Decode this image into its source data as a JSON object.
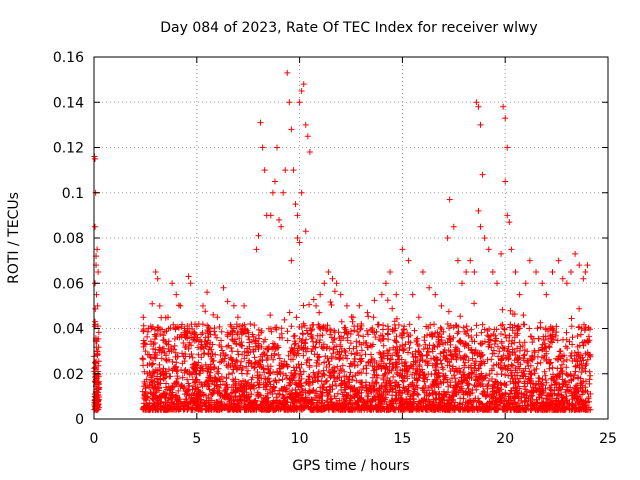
{
  "chart_data": {
    "type": "scatter",
    "title": "Day 084 of 2023, Rate Of TEC Index for receiver wlwy",
    "xlabel": "GPS time / hours",
    "ylabel": "ROTI / TECUs",
    "xlim": [
      0,
      25
    ],
    "ylim": [
      0,
      0.16
    ],
    "grid": true,
    "marker": "+",
    "series_color": "#ff0000",
    "x_ticks": [
      {
        "value": 0,
        "label": "0"
      },
      {
        "value": 5,
        "label": "5"
      },
      {
        "value": 10,
        "label": "10"
      },
      {
        "value": 15,
        "label": "15"
      },
      {
        "value": 20,
        "label": "20"
      },
      {
        "value": 25,
        "label": "25"
      }
    ],
    "y_ticks": [
      {
        "value": 0,
        "label": "0"
      },
      {
        "value": 0.02,
        "label": "0.02"
      },
      {
        "value": 0.04,
        "label": "0.04"
      },
      {
        "value": 0.06,
        "label": "0.06"
      },
      {
        "value": 0.08,
        "label": "0.08"
      },
      {
        "value": 0.1,
        "label": "0.1"
      },
      {
        "value": 0.12,
        "label": "0.12"
      },
      {
        "value": 0.14,
        "label": "0.14"
      },
      {
        "value": 0.16,
        "label": "0.16"
      }
    ],
    "series": [
      {
        "name": "ROTI",
        "points": [
          [
            0.02,
            0.116
          ],
          [
            0.05,
            0.115
          ],
          [
            0.08,
            0.1
          ],
          [
            0.05,
            0.085
          ],
          [
            0.1,
            0.072
          ],
          [
            0.15,
            0.075
          ],
          [
            0.1,
            0.068
          ],
          [
            0.2,
            0.065
          ],
          [
            0.05,
            0.06
          ],
          [
            0.12,
            0.055
          ],
          [
            0.18,
            0.05
          ],
          [
            0.05,
            0.043
          ],
          [
            0.1,
            0.035
          ],
          [
            0.15,
            0.03
          ],
          [
            0.05,
            0.025
          ],
          [
            0.2,
            0.02
          ],
          [
            0.1,
            0.015
          ],
          [
            0.15,
            0.012
          ],
          [
            0.05,
            0.01
          ],
          [
            0.2,
            0.008
          ],
          [
            0.1,
            0.007
          ],
          [
            0.15,
            0.018
          ],
          [
            0.22,
            0.013
          ],
          [
            0.03,
            0.011
          ],
          [
            2.4,
            0.045
          ],
          [
            2.5,
            0.03
          ],
          [
            2.6,
            0.02
          ],
          [
            2.7,
            0.015
          ],
          [
            2.8,
            0.04
          ],
          [
            3.0,
            0.065
          ],
          [
            3.1,
            0.062
          ],
          [
            3.2,
            0.05
          ],
          [
            3.4,
            0.035
          ],
          [
            3.6,
            0.045
          ],
          [
            3.8,
            0.06
          ],
          [
            4.0,
            0.055
          ],
          [
            4.2,
            0.05
          ],
          [
            4.4,
            0.04
          ],
          [
            4.6,
            0.063
          ],
          [
            4.7,
            0.06
          ],
          [
            4.9,
            0.038
          ],
          [
            5.1,
            0.042
          ],
          [
            5.3,
            0.05
          ],
          [
            5.5,
            0.056
          ],
          [
            5.8,
            0.046
          ],
          [
            6.0,
            0.045
          ],
          [
            6.3,
            0.058
          ],
          [
            6.5,
            0.052
          ],
          [
            6.8,
            0.04
          ],
          [
            7.0,
            0.045
          ],
          [
            7.3,
            0.05
          ],
          [
            7.6,
            0.042
          ],
          [
            7.9,
            0.075
          ],
          [
            8.0,
            0.081
          ],
          [
            8.1,
            0.131
          ],
          [
            8.2,
            0.12
          ],
          [
            8.3,
            0.11
          ],
          [
            8.4,
            0.09
          ],
          [
            8.6,
            0.09
          ],
          [
            8.7,
            0.1
          ],
          [
            8.8,
            0.105
          ],
          [
            8.9,
            0.12
          ],
          [
            9.0,
            0.088
          ],
          [
            9.1,
            0.085
          ],
          [
            9.2,
            0.1
          ],
          [
            9.3,
            0.11
          ],
          [
            9.4,
            0.153
          ],
          [
            9.5,
            0.14
          ],
          [
            9.6,
            0.128
          ],
          [
            9.7,
            0.11
          ],
          [
            9.8,
            0.095
          ],
          [
            9.9,
            0.09
          ],
          [
            10.0,
            0.14
          ],
          [
            10.1,
            0.145
          ],
          [
            10.2,
            0.148
          ],
          [
            10.3,
            0.13
          ],
          [
            10.4,
            0.125
          ],
          [
            10.5,
            0.118
          ],
          [
            10.1,
            0.1
          ],
          [
            9.9,
            0.08
          ],
          [
            10.3,
            0.083
          ],
          [
            9.6,
            0.07
          ],
          [
            10.0,
            0.078
          ],
          [
            10.8,
            0.05
          ],
          [
            11.0,
            0.055
          ],
          [
            11.2,
            0.06
          ],
          [
            11.4,
            0.065
          ],
          [
            11.6,
            0.062
          ],
          [
            11.8,
            0.06
          ],
          [
            12.0,
            0.055
          ],
          [
            12.3,
            0.05
          ],
          [
            12.6,
            0.045
          ],
          [
            13.0,
            0.042
          ],
          [
            13.3,
            0.047
          ],
          [
            13.6,
            0.045
          ],
          [
            14.0,
            0.055
          ],
          [
            14.2,
            0.06
          ],
          [
            14.4,
            0.065
          ],
          [
            14.7,
            0.055
          ],
          [
            15.0,
            0.075
          ],
          [
            15.3,
            0.07
          ],
          [
            15.5,
            0.055
          ],
          [
            15.8,
            0.045
          ],
          [
            16.0,
            0.065
          ],
          [
            16.3,
            0.058
          ],
          [
            16.6,
            0.055
          ],
          [
            16.9,
            0.05
          ],
          [
            17.2,
            0.08
          ],
          [
            17.3,
            0.097
          ],
          [
            17.5,
            0.085
          ],
          [
            17.7,
            0.07
          ],
          [
            17.9,
            0.06
          ],
          [
            18.1,
            0.065
          ],
          [
            18.3,
            0.07
          ],
          [
            18.5,
            0.065
          ],
          [
            18.6,
            0.14
          ],
          [
            18.7,
            0.138
          ],
          [
            18.8,
            0.13
          ],
          [
            18.9,
            0.108
          ],
          [
            18.7,
            0.092
          ],
          [
            18.8,
            0.085
          ],
          [
            19.0,
            0.08
          ],
          [
            19.2,
            0.075
          ],
          [
            19.4,
            0.065
          ],
          [
            19.6,
            0.06
          ],
          [
            19.8,
            0.073
          ],
          [
            19.9,
            0.138
          ],
          [
            20.0,
            0.133
          ],
          [
            20.1,
            0.12
          ],
          [
            20.0,
            0.105
          ],
          [
            20.1,
            0.09
          ],
          [
            20.2,
            0.087
          ],
          [
            20.3,
            0.075
          ],
          [
            20.5,
            0.065
          ],
          [
            20.7,
            0.055
          ],
          [
            21.0,
            0.06
          ],
          [
            21.2,
            0.07
          ],
          [
            21.5,
            0.065
          ],
          [
            21.8,
            0.06
          ],
          [
            22.0,
            0.055
          ],
          [
            22.3,
            0.065
          ],
          [
            22.6,
            0.07
          ],
          [
            22.8,
            0.062
          ],
          [
            23.0,
            0.06
          ],
          [
            23.2,
            0.065
          ],
          [
            23.4,
            0.073
          ],
          [
            23.6,
            0.068
          ],
          [
            23.8,
            0.062
          ],
          [
            23.9,
            0.065
          ],
          [
            24.0,
            0.068
          ],
          [
            2.5,
            0.012
          ],
          [
            3.0,
            0.01
          ],
          [
            3.5,
            0.014
          ],
          [
            4.0,
            0.016
          ],
          [
            4.5,
            0.011
          ],
          [
            5.0,
            0.013
          ],
          [
            5.5,
            0.015
          ],
          [
            6.0,
            0.012
          ],
          [
            6.5,
            0.014
          ],
          [
            7.0,
            0.013
          ],
          [
            7.5,
            0.016
          ],
          [
            8.0,
            0.015
          ],
          [
            8.5,
            0.018
          ],
          [
            9.0,
            0.017
          ],
          [
            9.5,
            0.016
          ],
          [
            10.0,
            0.019
          ],
          [
            10.5,
            0.015
          ],
          [
            11.0,
            0.014
          ],
          [
            11.5,
            0.013
          ],
          [
            12.0,
            0.015
          ],
          [
            12.5,
            0.014
          ],
          [
            13.0,
            0.016
          ],
          [
            13.5,
            0.012
          ],
          [
            14.0,
            0.015
          ],
          [
            14.5,
            0.013
          ],
          [
            15.0,
            0.017
          ],
          [
            15.5,
            0.016
          ],
          [
            16.0,
            0.018
          ],
          [
            16.5,
            0.015
          ],
          [
            17.0,
            0.016
          ],
          [
            17.5,
            0.014
          ],
          [
            18.0,
            0.017
          ],
          [
            18.5,
            0.015
          ],
          [
            19.0,
            0.018
          ],
          [
            19.5,
            0.016
          ],
          [
            20.0,
            0.015
          ],
          [
            20.5,
            0.014
          ],
          [
            21.0,
            0.013
          ],
          [
            21.5,
            0.015
          ],
          [
            22.0,
            0.016
          ],
          [
            22.5,
            0.014
          ],
          [
            23.0,
            0.013
          ],
          [
            23.5,
            0.015
          ],
          [
            24.0,
            0.012
          ]
        ]
      }
    ]
  }
}
